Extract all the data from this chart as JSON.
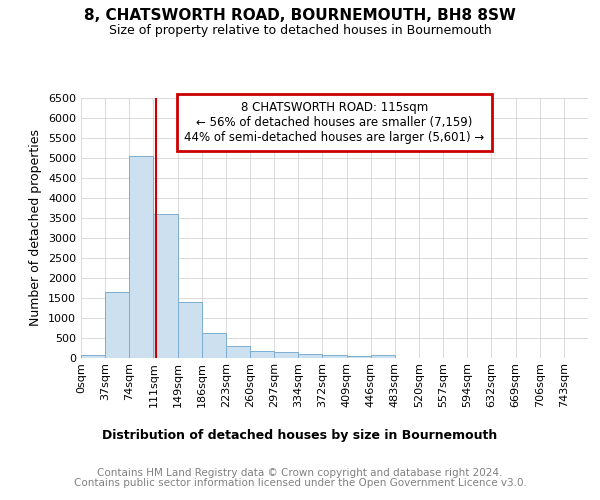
{
  "title": "8, CHATSWORTH ROAD, BOURNEMOUTH, BH8 8SW",
  "subtitle": "Size of property relative to detached houses in Bournemouth",
  "xlabel": "Distribution of detached houses by size in Bournemouth",
  "ylabel": "Number of detached properties",
  "bin_labels": [
    "0sqm",
    "37sqm",
    "74sqm",
    "111sqm",
    "149sqm",
    "186sqm",
    "223sqm",
    "260sqm",
    "297sqm",
    "334sqm",
    "372sqm",
    "409sqm",
    "446sqm",
    "483sqm",
    "520sqm",
    "557sqm",
    "594sqm",
    "632sqm",
    "669sqm",
    "706sqm",
    "743sqm"
  ],
  "bin_edges": [
    0,
    37,
    74,
    111,
    148,
    185,
    222,
    259,
    296,
    333,
    370,
    407,
    444,
    481,
    518,
    555,
    592,
    629,
    666,
    703,
    740,
    777
  ],
  "bar_heights": [
    75,
    1650,
    5050,
    3580,
    1400,
    610,
    300,
    155,
    130,
    95,
    55,
    40,
    75,
    0,
    0,
    0,
    0,
    0,
    0,
    0,
    0
  ],
  "bar_color": "#cce0f0",
  "bar_edge_color": "#7daed0",
  "property_size": 115,
  "red_line_color": "#cc0000",
  "ylim": [
    0,
    6500
  ],
  "yticks": [
    0,
    500,
    1000,
    1500,
    2000,
    2500,
    3000,
    3500,
    4000,
    4500,
    5000,
    5500,
    6000,
    6500
  ],
  "annotation_line1": "8 CHATSWORTH ROAD: 115sqm",
  "annotation_line2": "← 56% of detached houses are smaller (7,159)",
  "annotation_line3": "44% of semi-detached houses are larger (5,601) →",
  "annotation_box_color": "#cc0000",
  "grid_color": "#cccccc",
  "footer_line1": "Contains HM Land Registry data © Crown copyright and database right 2024.",
  "footer_line2": "Contains public sector information licensed under the Open Government Licence v3.0.",
  "background_color": "#ffffff",
  "fig_width": 6.0,
  "fig_height": 5.0
}
